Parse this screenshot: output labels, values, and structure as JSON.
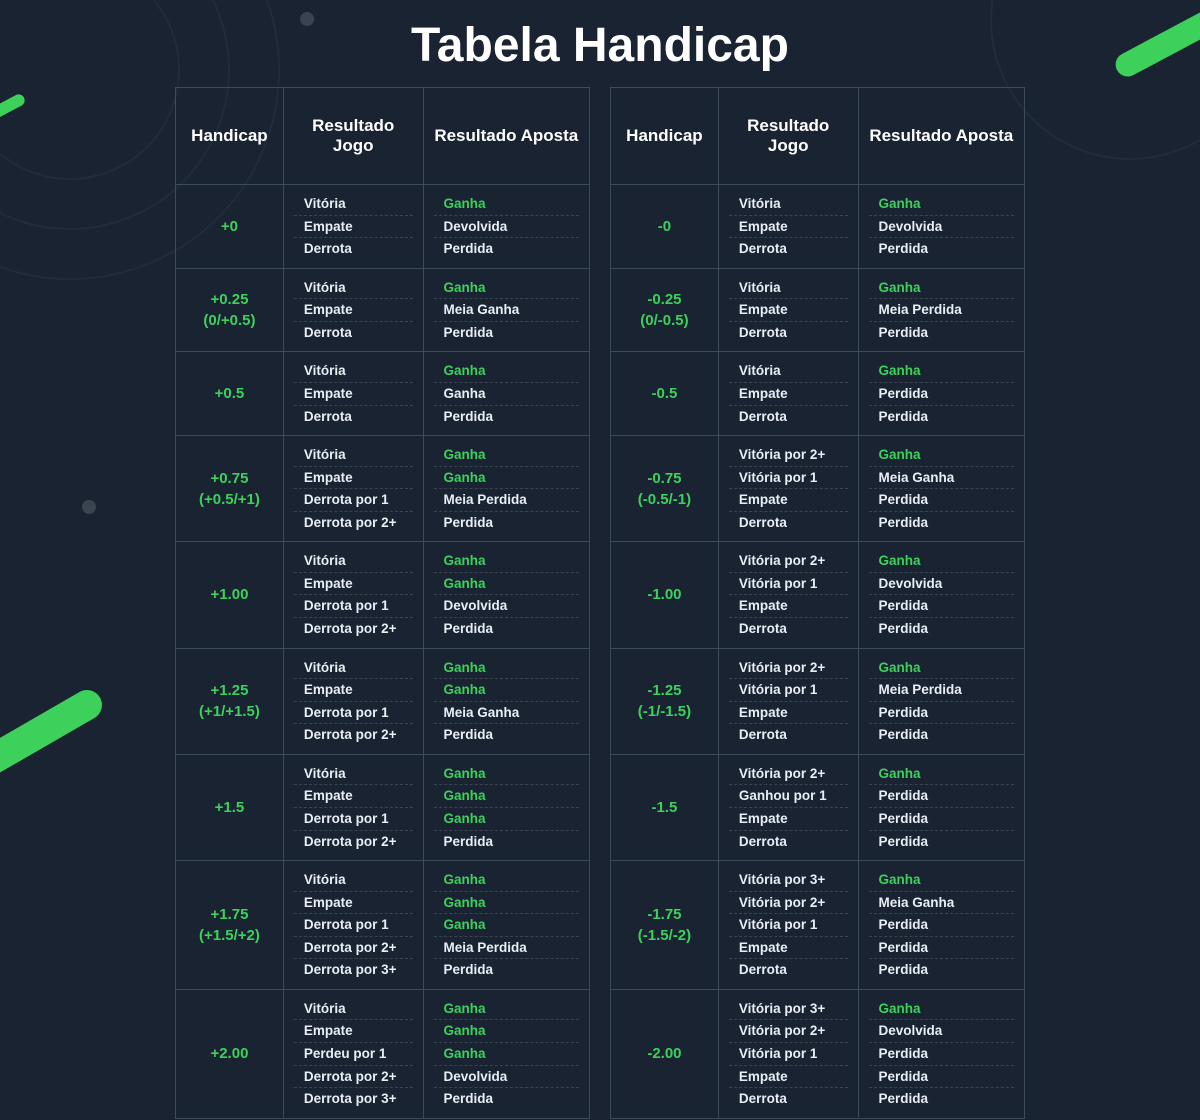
{
  "title": "Tabela Handicap",
  "colors": {
    "background": "#1a2332",
    "accent_green": "#3dd15b",
    "border": "#3d4a5c",
    "text": "#e8eef4",
    "title": "#ffffff"
  },
  "table_header": {
    "handicap": "Handicap",
    "game_result": "Resultado Jogo",
    "bet_result": "Resultado  Aposta"
  },
  "left_table": [
    {
      "handicap": "+0",
      "rows": [
        {
          "game": "Vitória",
          "bet": "Ganha",
          "green": true
        },
        {
          "game": "Empate",
          "bet": "Devolvida",
          "green": false
        },
        {
          "game": "Derrota",
          "bet": "Perdida",
          "green": false
        }
      ]
    },
    {
      "handicap": "+0.25\n(0/+0.5)",
      "rows": [
        {
          "game": "Vitória",
          "bet": "Ganha",
          "green": true
        },
        {
          "game": "Empate",
          "bet": "Meia Ganha",
          "green": false
        },
        {
          "game": "Derrota",
          "bet": "Perdida",
          "green": false
        }
      ]
    },
    {
      "handicap": "+0.5",
      "rows": [
        {
          "game": "Vitória",
          "bet": "Ganha",
          "green": true
        },
        {
          "game": "Empate",
          "bet": "Ganha",
          "green": false
        },
        {
          "game": "Derrota",
          "bet": "Perdida",
          "green": false
        }
      ]
    },
    {
      "handicap": "+0.75\n(+0.5/+1)",
      "rows": [
        {
          "game": "Vitória",
          "bet": "Ganha",
          "green": true
        },
        {
          "game": "Empate",
          "bet": "Ganha",
          "green": true
        },
        {
          "game": "Derrota por 1",
          "bet": "Meia Perdida",
          "green": false
        },
        {
          "game": "Derrota por 2+",
          "bet": "Perdida",
          "green": false
        }
      ]
    },
    {
      "handicap": "+1.00",
      "rows": [
        {
          "game": "Vitória",
          "bet": "Ganha",
          "green": true
        },
        {
          "game": "Empate",
          "bet": "Ganha",
          "green": true
        },
        {
          "game": "Derrota por 1",
          "bet": "Devolvida",
          "green": false
        },
        {
          "game": "Derrota por 2+",
          "bet": "Perdida",
          "green": false
        }
      ]
    },
    {
      "handicap": "+1.25\n(+1/+1.5)",
      "rows": [
        {
          "game": "Vitória",
          "bet": "Ganha",
          "green": true
        },
        {
          "game": "Empate",
          "bet": "Ganha",
          "green": true
        },
        {
          "game": "Derrota por 1",
          "bet": "Meia Ganha",
          "green": false
        },
        {
          "game": "Derrota por 2+",
          "bet": "Perdida",
          "green": false
        }
      ]
    },
    {
      "handicap": "+1.5",
      "rows": [
        {
          "game": "Vitória",
          "bet": "Ganha",
          "green": true
        },
        {
          "game": "Empate",
          "bet": "Ganha",
          "green": true
        },
        {
          "game": "Derrota por 1",
          "bet": "Ganha",
          "green": true
        },
        {
          "game": "Derrota por 2+",
          "bet": "Perdida",
          "green": false
        }
      ]
    },
    {
      "handicap": "+1.75\n(+1.5/+2)",
      "rows": [
        {
          "game": "Vitória",
          "bet": "Ganha",
          "green": true
        },
        {
          "game": "Empate",
          "bet": "Ganha",
          "green": true
        },
        {
          "game": "Derrota por 1",
          "bet": "Ganha",
          "green": true
        },
        {
          "game": "Derrota por 2+",
          "bet": "Meia Perdida",
          "green": false
        },
        {
          "game": "Derrota por 3+",
          "bet": "Perdida",
          "green": false
        }
      ]
    },
    {
      "handicap": "+2.00",
      "rows": [
        {
          "game": "Vitória",
          "bet": "Ganha",
          "green": true
        },
        {
          "game": "Empate",
          "bet": "Ganha",
          "green": true
        },
        {
          "game": "Perdeu por 1",
          "bet": "Ganha",
          "green": true
        },
        {
          "game": "Derrota por 2+",
          "bet": "Devolvida",
          "green": false
        },
        {
          "game": "Derrota por 3+",
          "bet": "Perdida",
          "green": false
        }
      ]
    }
  ],
  "right_table": [
    {
      "handicap": "-0",
      "rows": [
        {
          "game": "Vitória",
          "bet": "Ganha",
          "green": true
        },
        {
          "game": "Empate",
          "bet": "Devolvida",
          "green": false
        },
        {
          "game": "Derrota",
          "bet": "Perdida",
          "green": false
        }
      ]
    },
    {
      "handicap": "-0.25\n(0/-0.5)",
      "rows": [
        {
          "game": "Vitória",
          "bet": "Ganha",
          "green": true
        },
        {
          "game": "Empate",
          "bet": "Meia Perdida",
          "green": false
        },
        {
          "game": "Derrota",
          "bet": "Perdida",
          "green": false
        }
      ]
    },
    {
      "handicap": "-0.5",
      "rows": [
        {
          "game": "Vitória",
          "bet": "Ganha",
          "green": true
        },
        {
          "game": "Empate",
          "bet": "Perdida",
          "green": false
        },
        {
          "game": "Derrota",
          "bet": "Perdida",
          "green": false
        }
      ]
    },
    {
      "handicap": "-0.75\n(-0.5/-1)",
      "rows": [
        {
          "game": "Vitória por 2+",
          "bet": "Ganha",
          "green": true
        },
        {
          "game": "Vitória por 1",
          "bet": "Meia Ganha",
          "green": false
        },
        {
          "game": "Empate",
          "bet": "Perdida",
          "green": false
        },
        {
          "game": "Derrota",
          "bet": "Perdida",
          "green": false
        }
      ]
    },
    {
      "handicap": "-1.00",
      "rows": [
        {
          "game": "Vitória por 2+",
          "bet": "Ganha",
          "green": true
        },
        {
          "game": "Vitória por 1",
          "bet": "Devolvida",
          "green": false
        },
        {
          "game": "Empate",
          "bet": "Perdida",
          "green": false
        },
        {
          "game": "Derrota",
          "bet": "Perdida",
          "green": false
        }
      ]
    },
    {
      "handicap": "-1.25\n(-1/-1.5)",
      "rows": [
        {
          "game": "Vitória por 2+",
          "bet": "Ganha",
          "green": true
        },
        {
          "game": "Vitória por 1",
          "bet": "Meia Perdida",
          "green": false
        },
        {
          "game": "Empate",
          "bet": "Perdida",
          "green": false
        },
        {
          "game": "Derrota",
          "bet": "Perdida",
          "green": false
        }
      ]
    },
    {
      "handicap": "-1.5",
      "rows": [
        {
          "game": "Vitória por 2+",
          "bet": "Ganha",
          "green": true
        },
        {
          "game": "Ganhou por 1",
          "bet": "Perdida",
          "green": false
        },
        {
          "game": "Empate",
          "bet": "Perdida",
          "green": false
        },
        {
          "game": "Derrota",
          "bet": "Perdida",
          "green": false
        }
      ]
    },
    {
      "handicap": "-1.75\n(-1.5/-2)",
      "rows": [
        {
          "game": "Vitória por 3+",
          "bet": "Ganha",
          "green": true
        },
        {
          "game": "Vitória por 2+",
          "bet": "Meia Ganha",
          "green": false
        },
        {
          "game": "Vitória por 1",
          "bet": "Perdida",
          "green": false
        },
        {
          "game": "Empate",
          "bet": "Perdida",
          "green": false
        },
        {
          "game": "Derrota",
          "bet": "Perdida",
          "green": false
        }
      ]
    },
    {
      "handicap": "-2.00",
      "rows": [
        {
          "game": "Vitória por 3+",
          "bet": "Ganha",
          "green": true
        },
        {
          "game": "Vitória por 2+",
          "bet": "Devolvida",
          "green": false
        },
        {
          "game": "Vitória por 1",
          "bet": "Perdida",
          "green": false
        },
        {
          "game": "Empate",
          "bet": "Perdida",
          "green": false
        },
        {
          "game": "Derrota",
          "bet": "Perdida",
          "green": false
        }
      ]
    }
  ]
}
